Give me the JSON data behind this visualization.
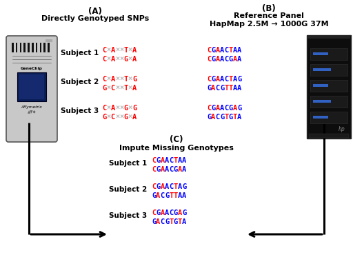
{
  "title_A": "(A)",
  "title_B": "(B)",
  "title_C": "(C)",
  "label_A": "Directly Genotyped SNPs",
  "label_B_line1": "Reference Panel",
  "label_B_line2": "HapMap 2.5M → 1000G 37M",
  "label_C": "Impute Missing Genotypes",
  "subjects": [
    "Subject 1",
    "Subject 2",
    "Subject 3"
  ],
  "seq_A": [
    [
      "C",
      "×",
      "A",
      "×",
      "×",
      "T",
      "×",
      "A"
    ],
    [
      "C",
      "×",
      "A",
      "×",
      "×",
      "G",
      "×",
      "A"
    ],
    [
      "C",
      "×",
      "A",
      "×",
      "×",
      "T",
      "×",
      "G"
    ],
    [
      "G",
      "×",
      "C",
      "×",
      "×",
      "T",
      "×",
      "A"
    ],
    [
      "C",
      "×",
      "A",
      "×",
      "×",
      "G",
      "×",
      "G"
    ],
    [
      "G",
      "×",
      "C",
      "×",
      "×",
      "G",
      "×",
      "A"
    ]
  ],
  "seq_A_colors": [
    [
      "red",
      "#bbbbbb",
      "red",
      "#bbbbbb",
      "#bbbbbb",
      "red",
      "#bbbbbb",
      "red"
    ],
    [
      "red",
      "#bbbbbb",
      "red",
      "#bbbbbb",
      "#bbbbbb",
      "red",
      "#bbbbbb",
      "red"
    ],
    [
      "red",
      "#bbbbbb",
      "red",
      "#bbbbbb",
      "#bbbbbb",
      "red",
      "#bbbbbb",
      "red"
    ],
    [
      "red",
      "#bbbbbb",
      "red",
      "#bbbbbb",
      "#bbbbbb",
      "red",
      "#bbbbbb",
      "red"
    ],
    [
      "red",
      "#bbbbbb",
      "red",
      "#bbbbbb",
      "#bbbbbb",
      "red",
      "#bbbbbb",
      "red"
    ],
    [
      "red",
      "#bbbbbb",
      "red",
      "#bbbbbb",
      "#bbbbbb",
      "red",
      "#bbbbbb",
      "red"
    ]
  ],
  "seq_B": [
    [
      "C",
      "G",
      "A",
      "A",
      "C",
      "T",
      "A",
      "A"
    ],
    [
      "C",
      "G",
      "A",
      "A",
      "C",
      "G",
      "A",
      "A"
    ],
    [
      "C",
      "G",
      "A",
      "A",
      "C",
      "T",
      "A",
      "G"
    ],
    [
      "G",
      "A",
      "C",
      "G",
      "T",
      "T",
      "A",
      "A"
    ],
    [
      "C",
      "G",
      "A",
      "A",
      "C",
      "G",
      "A",
      "G"
    ],
    [
      "G",
      "A",
      "C",
      "G",
      "T",
      "G",
      "T",
      "A"
    ]
  ],
  "seq_B_colors": [
    [
      "red",
      "blue",
      "red",
      "blue",
      "blue",
      "red",
      "blue",
      "blue"
    ],
    [
      "red",
      "blue",
      "red",
      "blue",
      "blue",
      "blue",
      "red",
      "blue"
    ],
    [
      "red",
      "blue",
      "red",
      "blue",
      "blue",
      "red",
      "blue",
      "blue"
    ],
    [
      "blue",
      "red",
      "blue",
      "blue",
      "red",
      "red",
      "blue",
      "blue"
    ],
    [
      "red",
      "blue",
      "red",
      "blue",
      "blue",
      "blue",
      "red",
      "blue"
    ],
    [
      "blue",
      "red",
      "blue",
      "blue",
      "red",
      "blue",
      "red",
      "blue"
    ]
  ],
  "seq_C": [
    [
      "C",
      "G",
      "A",
      "A",
      "C",
      "T",
      "A",
      "A"
    ],
    [
      "C",
      "G",
      "A",
      "A",
      "C",
      "G",
      "A",
      "A"
    ],
    [
      "C",
      "G",
      "A",
      "A",
      "C",
      "T",
      "A",
      "G"
    ],
    [
      "G",
      "A",
      "C",
      "G",
      "T",
      "T",
      "A",
      "A"
    ],
    [
      "C",
      "G",
      "A",
      "A",
      "C",
      "G",
      "A",
      "G"
    ],
    [
      "G",
      "A",
      "C",
      "G",
      "T",
      "G",
      "T",
      "A"
    ]
  ],
  "seq_C_colors": [
    [
      "red",
      "blue",
      "red",
      "blue",
      "blue",
      "red",
      "blue",
      "blue"
    ],
    [
      "red",
      "blue",
      "red",
      "blue",
      "blue",
      "blue",
      "red",
      "blue"
    ],
    [
      "red",
      "blue",
      "red",
      "blue",
      "blue",
      "red",
      "blue",
      "blue"
    ],
    [
      "blue",
      "red",
      "blue",
      "blue",
      "red",
      "red",
      "blue",
      "blue"
    ],
    [
      "red",
      "blue",
      "red",
      "blue",
      "blue",
      "blue",
      "red",
      "blue"
    ],
    [
      "blue",
      "red",
      "blue",
      "blue",
      "red",
      "blue",
      "red",
      "blue"
    ]
  ],
  "bg_color": "#ffffff",
  "arrow_color": "#000000",
  "chip_face": "#c8c8c8",
  "chip_edge": "#555555",
  "chip_blue": "#1a3a80",
  "server_face": "#111111",
  "server_led": "#3366cc"
}
